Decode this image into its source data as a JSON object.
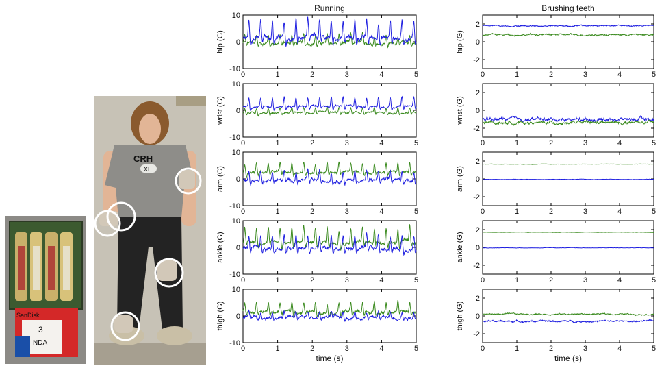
{
  "chart_data": [
    {
      "type": "line",
      "title": "Running",
      "xlabel": "time (s)",
      "xlim": [
        0,
        5
      ],
      "xticks": [
        "0",
        "1",
        "2",
        "3",
        "4",
        "5"
      ],
      "series_colors": {
        "primary": "#1f1fe0",
        "secondary": "#3a8a1e"
      },
      "panels": [
        {
          "ylabel": "hip (G)",
          "ylim": [
            -10,
            10
          ],
          "yticks": [
            "10",
            "0",
            "-10"
          ],
          "blue": {
            "baseline": 1.5,
            "amp": 6.5,
            "spike_period": 0.34,
            "noise": 1.5
          },
          "green": {
            "baseline": -0.5,
            "amp": 3.0,
            "spike_period": 0.34,
            "noise": 1.0
          }
        },
        {
          "ylabel": "wrist (G)",
          "ylim": [
            -10,
            10
          ],
          "yticks": [
            "10",
            "0",
            "-10"
          ],
          "blue": {
            "baseline": 1.5,
            "amp": 3.5,
            "spike_period": 0.34,
            "noise": 0.6
          },
          "green": {
            "baseline": -1.0,
            "amp": 2.0,
            "spike_period": 0.34,
            "noise": 0.6
          }
        },
        {
          "ylabel": "arm (G)",
          "ylim": [
            -10,
            10
          ],
          "yticks": [
            "10",
            "0",
            "-10"
          ],
          "blue": {
            "baseline": -0.5,
            "amp": 3.5,
            "spike_period": 0.34,
            "noise": 1.0
          },
          "green": {
            "baseline": 2.5,
            "amp": 3.5,
            "spike_period": 0.34,
            "noise": 0.8
          }
        },
        {
          "ylabel": "ankle (G)",
          "ylim": [
            -10,
            10
          ],
          "yticks": [
            "10",
            "0",
            "-10"
          ],
          "blue": {
            "baseline": -0.5,
            "amp": 5.0,
            "spike_period": 0.34,
            "noise": 1.2
          },
          "green": {
            "baseline": 2.0,
            "amp": 5.5,
            "spike_period": 0.34,
            "noise": 1.2
          }
        },
        {
          "ylabel": "thigh (G)",
          "ylim": [
            -10,
            10
          ],
          "yticks": [
            "10",
            "0",
            "-10"
          ],
          "blue": {
            "baseline": -0.5,
            "amp": 2.0,
            "spike_period": 0.34,
            "noise": 1.0
          },
          "green": {
            "baseline": 1.5,
            "amp": 3.5,
            "spike_period": 0.34,
            "noise": 1.0
          }
        }
      ]
    },
    {
      "type": "line",
      "title": "Brushing teeth",
      "xlabel": "time (s)",
      "xlim": [
        0,
        5
      ],
      "xticks": [
        "0",
        "1",
        "2",
        "3",
        "4",
        "5"
      ],
      "series_colors": {
        "primary": "#1f1fe0",
        "secondary": "#3a8a1e"
      },
      "panels": [
        {
          "ylabel": "hip (G)",
          "ylim": [
            -3,
            3
          ],
          "yticks": [
            "2",
            "0",
            "-2"
          ],
          "blue": {
            "baseline": 1.8,
            "amp": 0,
            "spike_period": 1,
            "noise": 0.12
          },
          "green": {
            "baseline": 0.8,
            "amp": 0,
            "spike_period": 1,
            "noise": 0.15
          }
        },
        {
          "ylabel": "wrist (G)",
          "ylim": [
            -3,
            3
          ],
          "yticks": [
            "2",
            "0",
            "-2"
          ],
          "blue": {
            "baseline": -1.0,
            "amp": 0,
            "spike_period": 1,
            "noise": 0.3
          },
          "green": {
            "baseline": -1.4,
            "amp": 0,
            "spike_period": 1,
            "noise": 0.25
          }
        },
        {
          "ylabel": "arm (G)",
          "ylim": [
            -3,
            3
          ],
          "yticks": [
            "2",
            "0",
            "-2"
          ],
          "blue": {
            "baseline": -0.05,
            "amp": 0,
            "spike_period": 1,
            "noise": 0.03
          },
          "green": {
            "baseline": 1.65,
            "amp": 0,
            "spike_period": 1,
            "noise": 0.03
          }
        },
        {
          "ylabel": "ankle (G)",
          "ylim": [
            -3,
            3
          ],
          "yticks": [
            "2",
            "0",
            "-2"
          ],
          "blue": {
            "baseline": -0.05,
            "amp": 0,
            "spike_period": 1,
            "noise": 0.03
          },
          "green": {
            "baseline": 1.7,
            "amp": 0,
            "spike_period": 1,
            "noise": 0.03
          }
        },
        {
          "ylabel": "thigh (G)",
          "ylim": [
            -3,
            3
          ],
          "yticks": [
            "2",
            "0",
            "-2"
          ],
          "blue": {
            "baseline": -0.6,
            "amp": 0,
            "spike_period": 1,
            "noise": 0.15
          },
          "green": {
            "baseline": 0.2,
            "amp": 0,
            "spike_period": 1,
            "noise": 0.12
          }
        }
      ]
    }
  ],
  "photos": {
    "device_label_1": "SanDisk",
    "device_label_2": "3",
    "device_label_3": "NDA",
    "shirt_text_1": "CRH",
    "shirt_text_2": "XL"
  }
}
